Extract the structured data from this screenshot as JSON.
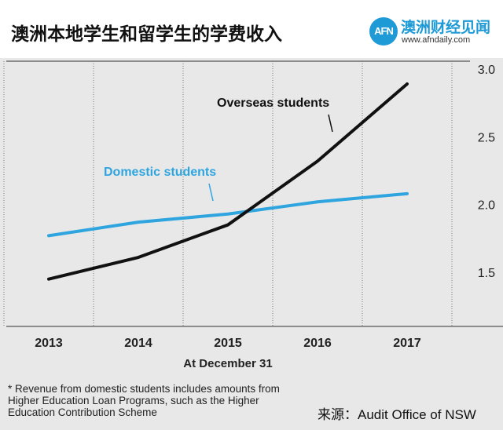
{
  "header": {
    "title": "澳洲本地学生和留学生的学费收入"
  },
  "brand": {
    "badge_text": "AFN",
    "name": "澳洲财经见闻",
    "url": "www.afndaily.com",
    "color": "#1e9ad6"
  },
  "chart_data": {
    "type": "line",
    "x": [
      2013,
      2014,
      2015,
      2016,
      2017
    ],
    "x_tick_labels": [
      "2013",
      "2014",
      "2015",
      "2016",
      "2017"
    ],
    "xlabel": "At December 31",
    "ylim": [
      1.1,
      3.1
    ],
    "y_ticks": [
      1.5,
      2.0,
      2.5,
      3.0
    ],
    "y_tick_labels": [
      "1.5",
      "2.0",
      "2.5",
      "3.0"
    ],
    "grid": "vertical dotted",
    "series": [
      {
        "name": "Overseas students",
        "color": "#111111",
        "values": [
          1.45,
          1.61,
          1.85,
          2.32,
          2.89
        ]
      },
      {
        "name": "Domestic students",
        "color": "#2fa5df",
        "values": [
          1.77,
          1.87,
          1.93,
          2.02,
          2.08
        ]
      }
    ]
  },
  "footnote": "* Revenue from domestic students includes amounts from Higher Education Loan Programs, such as the Higher Education Contribution Scheme",
  "source": "来源：Audit Office of NSW"
}
